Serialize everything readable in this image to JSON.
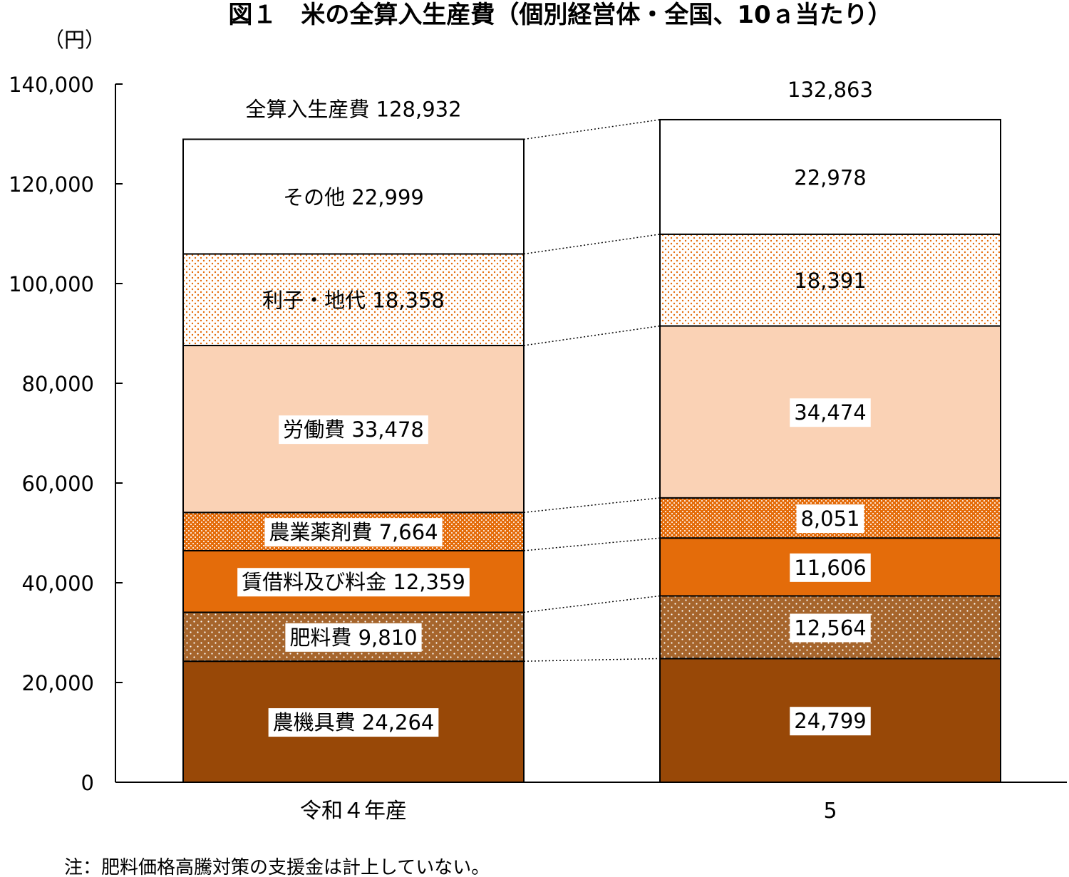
{
  "chart_data": {
    "type": "bar",
    "stacked": true,
    "title": "図１　米の全算入生産費（個別経営体・全国、10ａ当たり）",
    "ylabel": "（円）",
    "ylim": [
      0,
      140000
    ],
    "yticks": [
      0,
      20000,
      40000,
      60000,
      80000,
      100000,
      120000,
      140000
    ],
    "ytick_labels": [
      "0",
      "20,000",
      "40,000",
      "60,000",
      "80,000",
      "100,000",
      "120,000",
      "140,000"
    ],
    "categories": [
      "令和４年産",
      "5"
    ],
    "series": [
      {
        "name": "農機具費",
        "values": [
          24264,
          24799
        ],
        "value_labels": [
          "24,264",
          "24,799"
        ],
        "color": "#984807",
        "pattern": "solid"
      },
      {
        "name": "肥料費",
        "values": [
          9810,
          12564
        ],
        "value_labels": [
          "9,810",
          "12,564"
        ],
        "color": "#A6652C",
        "pattern": "dots-white"
      },
      {
        "name": "賃借料及び料金",
        "values": [
          12359,
          11606
        ],
        "value_labels": [
          "12,359",
          "11,606"
        ],
        "color": "#E46C0A",
        "pattern": "solid"
      },
      {
        "name": "農業薬剤費",
        "values": [
          7664,
          8051
        ],
        "value_labels": [
          "7,664",
          "8,051"
        ],
        "color": "#E46C0A",
        "pattern": "dense-checker"
      },
      {
        "name": "労働費",
        "values": [
          33478,
          34474
        ],
        "value_labels": [
          "33,478",
          "34,474"
        ],
        "color": "#FAD2B5",
        "pattern": "solid"
      },
      {
        "name": "利子・地代",
        "values": [
          18358,
          18391
        ],
        "value_labels": [
          "18,358",
          "18,391"
        ],
        "color": "#E46C0A",
        "pattern": "sparse-dots"
      },
      {
        "name": "その他",
        "values": [
          22999,
          22978
        ],
        "value_labels": [
          "22,999",
          "22,978"
        ],
        "color": "#FFFFFF",
        "pattern": "solid"
      }
    ],
    "totals": {
      "name": "全算入生産費",
      "values": [
        128932,
        132863
      ],
      "labels": [
        "128,932",
        "132,863"
      ]
    },
    "legend": "none",
    "grid": false,
    "note": "注：肥料価格高騰対策の支援金は計上していない。"
  }
}
